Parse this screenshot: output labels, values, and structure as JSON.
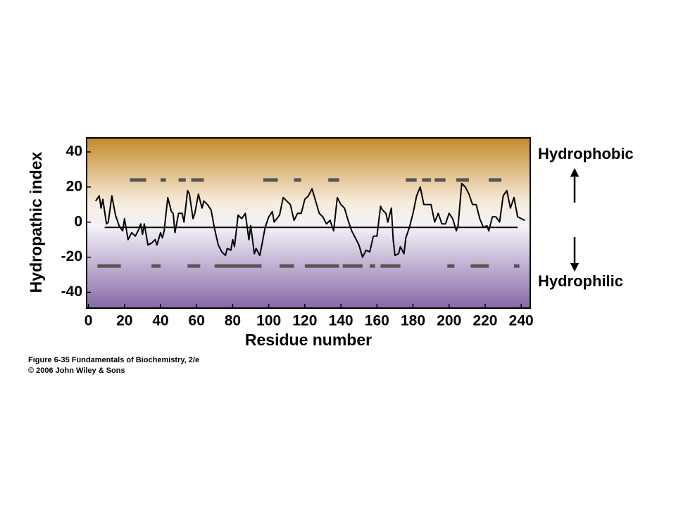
{
  "chart_data": {
    "type": "line",
    "xlabel": "Residue number",
    "ylabel": "Hydropathic index",
    "annotations": {
      "top": "Hydrophobic",
      "bottom": "Hydrophilic"
    },
    "caption": [
      "Figure 6-35  Fundamentals of Biochemistry, 2/e",
      "© 2006 John Wiley & Sons"
    ],
    "xlim": [
      -1,
      245
    ],
    "ylim": [
      -49,
      48
    ],
    "xticks": [
      0,
      20,
      40,
      60,
      80,
      100,
      120,
      140,
      160,
      180,
      200,
      220,
      240
    ],
    "yticks": [
      -40,
      -20,
      0,
      20,
      40
    ],
    "color": "#000000",
    "x": [
      4,
      6,
      7,
      8,
      10,
      11,
      13,
      15,
      17,
      19,
      20,
      22,
      24,
      26,
      28,
      29,
      30,
      31,
      33,
      35,
      37,
      38,
      40,
      41,
      42,
      44,
      46,
      47,
      48,
      50,
      52,
      53,
      55,
      56,
      58,
      59,
      61,
      63,
      64,
      66,
      68,
      70,
      72,
      74,
      76,
      77,
      79,
      80,
      81,
      83,
      85,
      87,
      89,
      90,
      92,
      93,
      95,
      96,
      98,
      100,
      102,
      103,
      106,
      108,
      110,
      112,
      114,
      116,
      118,
      120,
      122,
      124,
      126,
      128,
      130,
      132,
      134,
      136,
      138,
      140,
      142,
      144,
      146,
      148,
      150,
      152,
      154,
      156,
      158,
      160,
      162,
      163,
      165,
      166,
      168,
      169,
      170,
      172,
      173,
      175,
      176,
      178,
      180,
      182,
      184,
      186,
      188,
      190,
      192,
      194,
      196,
      198,
      200,
      202,
      204,
      205,
      207,
      209,
      211,
      213,
      215,
      217,
      219,
      221,
      222,
      224,
      226,
      228,
      230,
      232,
      234,
      236,
      238,
      240,
      242
    ],
    "values": [
      12,
      15,
      8,
      13,
      -1,
      0,
      15,
      4,
      -2,
      -5,
      2,
      -10,
      -6,
      -8,
      -4,
      -1,
      -7,
      -1,
      -13,
      -12,
      -10,
      -13,
      -6,
      -9,
      -5,
      14,
      6,
      5,
      -6,
      5,
      5,
      0,
      18,
      16,
      2,
      5,
      16,
      8,
      12,
      10,
      7,
      -4,
      -13,
      -17,
      -19,
      -15,
      -16,
      -10,
      -14,
      4,
      2,
      5,
      -10,
      -2,
      -18,
      -15,
      -19,
      -14,
      -3,
      3,
      6,
      0,
      4,
      14,
      12,
      10,
      1,
      5,
      5,
      13,
      15,
      19,
      12,
      5,
      3,
      -1,
      1,
      -5,
      14,
      10,
      8,
      1,
      -5,
      -9,
      -13,
      -20,
      -16,
      -17,
      -8,
      -8,
      9,
      7,
      5,
      0,
      8,
      -10,
      -19,
      -18,
      -14,
      -18,
      -9,
      -3,
      5,
      15,
      20,
      10,
      10,
      10,
      0,
      5,
      -1,
      -1,
      5,
      2,
      -5,
      -2,
      22,
      20,
      16,
      10,
      10,
      2,
      -3,
      -2,
      -5,
      3,
      3,
      0,
      15,
      18,
      8,
      14,
      3,
      2,
      1
    ],
    "reference_line": {
      "y": -3,
      "x": [
        9,
        238
      ]
    },
    "segments": [
      {
        "y": 24,
        "color": "#555555",
        "ranges": [
          [
            23,
            32
          ],
          [
            40,
            43
          ],
          [
            50,
            54
          ],
          [
            57,
            64
          ],
          [
            97,
            105
          ],
          [
            114,
            118
          ],
          [
            133,
            139
          ],
          [
            176,
            182
          ],
          [
            185,
            190
          ],
          [
            192,
            198
          ],
          [
            204,
            211
          ],
          [
            222,
            229
          ]
        ]
      },
      {
        "y": -25,
        "color": "#555555",
        "ranges": [
          [
            5,
            18
          ],
          [
            35,
            40
          ],
          [
            55,
            62
          ],
          [
            70,
            96
          ],
          [
            106,
            114
          ],
          [
            120,
            139
          ],
          [
            141,
            152
          ],
          [
            156,
            159
          ],
          [
            162,
            173
          ],
          [
            199,
            203
          ],
          [
            212,
            222
          ],
          [
            236,
            239
          ]
        ]
      }
    ]
  }
}
